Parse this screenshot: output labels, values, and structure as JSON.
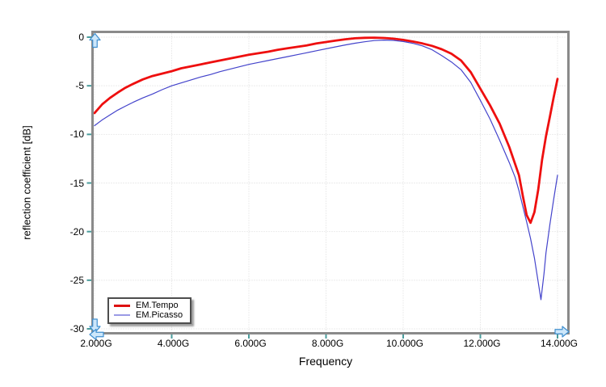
{
  "figure": {
    "background": "#ffffff",
    "frame_color": "#8a8a8a",
    "grid_color": "#d9d9d9",
    "tick_color": "#4a9c9c",
    "text_color": "#000000",
    "arrow_fill": "#cde7fa",
    "arrow_stroke": "#4090d0"
  },
  "legend": {
    "items": [
      {
        "label": "EM.Tempo",
        "swatch": "#dd1111",
        "swatch_thickness": 3
      },
      {
        "label": "EM.Picasso",
        "swatch": "#9a9ae6",
        "swatch_thickness": 2
      }
    ]
  },
  "chart_data": {
    "type": "line",
    "title": "",
    "xlabel": "Frequency",
    "ylabel": "reflection coefficient [dB]",
    "x_unit": "GHz",
    "xlim": [
      2,
      14
    ],
    "ylim": [
      -30,
      0
    ],
    "grid": true,
    "grid_style": "dotted",
    "legend_position": "bottom-left-inside",
    "x_ticks": [
      {
        "value": 2,
        "label": "2.000G"
      },
      {
        "value": 4,
        "label": "4.000G"
      },
      {
        "value": 6,
        "label": "6.000G"
      },
      {
        "value": 8,
        "label": "8.000G"
      },
      {
        "value": 10,
        "label": "10.000G"
      },
      {
        "value": 12,
        "label": "12.000G"
      },
      {
        "value": 14,
        "label": "14.000G"
      }
    ],
    "y_ticks": [
      {
        "value": 0,
        "label": "0"
      },
      {
        "value": -5,
        "label": "-5"
      },
      {
        "value": -10,
        "label": "-10"
      },
      {
        "value": -15,
        "label": "-15"
      },
      {
        "value": -20,
        "label": "-20"
      },
      {
        "value": -25,
        "label": "-25"
      },
      {
        "value": -30,
        "label": "-30"
      }
    ],
    "series": [
      {
        "name": "EM.Tempo",
        "color": "#ee0f0f",
        "line_width": 2.8,
        "x": [
          2.0,
          2.2,
          2.4,
          2.6,
          2.8,
          3.0,
          3.25,
          3.5,
          3.75,
          4.0,
          4.25,
          4.5,
          4.75,
          5.0,
          5.25,
          5.5,
          5.75,
          6.0,
          6.25,
          6.5,
          6.75,
          7.0,
          7.25,
          7.5,
          7.75,
          8.0,
          8.25,
          8.5,
          8.75,
          9.0,
          9.25,
          9.5,
          9.75,
          10.0,
          10.25,
          10.5,
          10.75,
          11.0,
          11.25,
          11.5,
          11.75,
          12.0,
          12.25,
          12.5,
          12.75,
          13.0,
          13.1,
          13.2,
          13.3,
          13.4,
          13.5,
          13.6,
          13.7,
          13.8,
          13.9,
          14.0
        ],
        "y": [
          -7.8,
          -6.9,
          -6.25,
          -5.7,
          -5.2,
          -4.8,
          -4.35,
          -4.0,
          -3.75,
          -3.5,
          -3.2,
          -3.0,
          -2.8,
          -2.6,
          -2.4,
          -2.2,
          -2.0,
          -1.8,
          -1.65,
          -1.5,
          -1.3,
          -1.15,
          -1.0,
          -0.85,
          -0.65,
          -0.5,
          -0.35,
          -0.22,
          -0.12,
          -0.07,
          -0.05,
          -0.08,
          -0.16,
          -0.28,
          -0.45,
          -0.65,
          -0.9,
          -1.25,
          -1.7,
          -2.4,
          -3.6,
          -5.3,
          -7.0,
          -8.9,
          -11.3,
          -14.2,
          -16.3,
          -18.3,
          -19.1,
          -18.0,
          -15.7,
          -12.6,
          -10.2,
          -8.2,
          -6.2,
          -4.3
        ]
      },
      {
        "name": "EM.Picasso",
        "color": "#4343cb",
        "line_width": 1.2,
        "x": [
          2.0,
          2.2,
          2.4,
          2.6,
          2.8,
          3.0,
          3.25,
          3.5,
          3.75,
          4.0,
          4.25,
          4.5,
          4.75,
          5.0,
          5.25,
          5.5,
          5.75,
          6.0,
          6.25,
          6.5,
          6.75,
          7.0,
          7.25,
          7.5,
          7.75,
          8.0,
          8.25,
          8.5,
          8.75,
          9.0,
          9.25,
          9.5,
          9.75,
          10.0,
          10.25,
          10.5,
          10.75,
          11.0,
          11.25,
          11.5,
          11.75,
          12.0,
          12.25,
          12.5,
          12.75,
          12.9,
          13.0,
          13.1,
          13.2,
          13.3,
          13.4,
          13.5,
          13.57,
          13.65,
          13.7,
          13.8,
          13.9,
          14.0
        ],
        "y": [
          -9.1,
          -8.5,
          -8.0,
          -7.5,
          -7.1,
          -6.7,
          -6.25,
          -5.85,
          -5.4,
          -5.0,
          -4.7,
          -4.4,
          -4.1,
          -3.85,
          -3.55,
          -3.3,
          -3.05,
          -2.8,
          -2.6,
          -2.4,
          -2.2,
          -2.0,
          -1.8,
          -1.6,
          -1.4,
          -1.2,
          -1.0,
          -0.8,
          -0.62,
          -0.47,
          -0.35,
          -0.3,
          -0.33,
          -0.45,
          -0.63,
          -0.9,
          -1.3,
          -1.9,
          -2.55,
          -3.35,
          -4.65,
          -6.5,
          -8.4,
          -10.6,
          -12.9,
          -14.4,
          -15.8,
          -17.4,
          -19.0,
          -20.7,
          -22.7,
          -25.2,
          -27.0,
          -24.3,
          -22.2,
          -19.3,
          -16.7,
          -14.2
        ]
      }
    ]
  }
}
